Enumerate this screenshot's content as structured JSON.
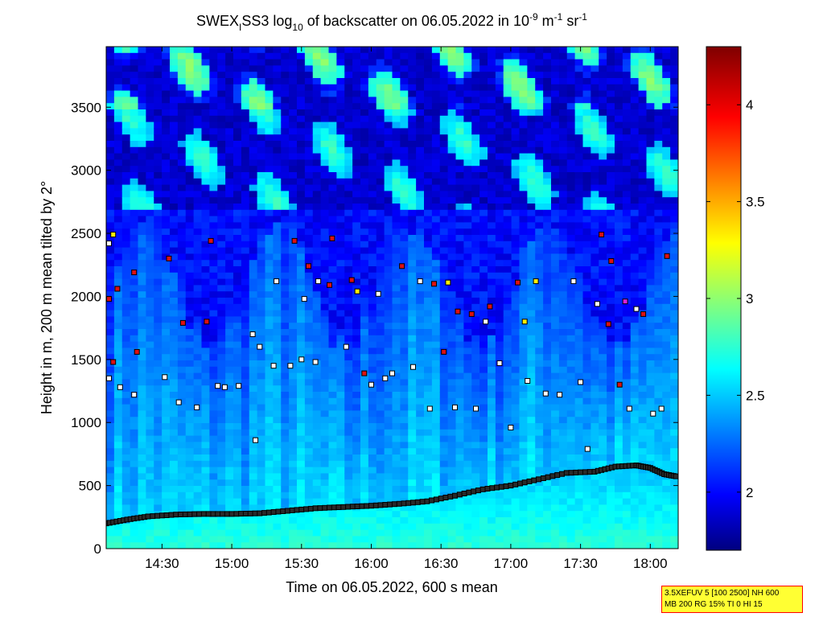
{
  "chart_data": {
    "type": "heatmap",
    "title_parts": [
      "SWEX",
      "I",
      "SS3 log",
      "10",
      " of backscatter on 06.05.2022 in 10",
      "-9",
      " m",
      "-1",
      " sr",
      "-1"
    ],
    "xlabel": "Time on 06.05.2022, 600 s mean",
    "ylabel": "Height in m, 200 m mean tilted by 2°",
    "x_range_hours": [
      14.1,
      18.2
    ],
    "x_ticks": [
      {
        "value": 14.5,
        "label": "14:30"
      },
      {
        "value": 15.0,
        "label": "15:00"
      },
      {
        "value": 15.5,
        "label": "15:30"
      },
      {
        "value": 16.0,
        "label": "16:00"
      },
      {
        "value": 16.5,
        "label": "16:30"
      },
      {
        "value": 17.0,
        "label": "17:00"
      },
      {
        "value": 17.5,
        "label": "17:30"
      },
      {
        "value": 18.0,
        "label": "18:00"
      }
    ],
    "ylim": [
      0,
      3980
    ],
    "y_ticks": [
      0,
      500,
      1000,
      1500,
      2000,
      2500,
      3000,
      3500
    ],
    "colorbar": {
      "range": [
        1.7,
        4.3
      ],
      "ticks": [
        2,
        2.5,
        3,
        3.5,
        4
      ],
      "colormap": "jet"
    },
    "backscatter_profile": {
      "description_levels": "log10 backscatter, dense near ground, decreasing aloft",
      "surface_layer_top_m": [
        200,
        230,
        260,
        290,
        320,
        340,
        370,
        420,
        480,
        540,
        620,
        660,
        600
      ],
      "surface_layer_time_h": [
        14.1,
        14.35,
        14.7,
        15.1,
        15.5,
        15.9,
        16.3,
        16.6,
        16.9,
        17.2,
        17.5,
        17.8,
        18.2
      ]
    },
    "layer_markers": {
      "boundary_layer_top": {
        "time_h": [
          14.1,
          14.25,
          14.4,
          14.6,
          14.8,
          15.0,
          15.2,
          15.4,
          15.6,
          15.8,
          16.0,
          16.2,
          16.4,
          16.6,
          16.8,
          17.0,
          17.2,
          17.4,
          17.6,
          17.75,
          17.9,
          18.0,
          18.1,
          18.2
        ],
        "height_m": [
          200,
          230,
          255,
          270,
          275,
          275,
          280,
          300,
          320,
          330,
          340,
          355,
          375,
          420,
          470,
          500,
          550,
          600,
          610,
          650,
          660,
          640,
          590,
          570
        ]
      },
      "cloud_base_hits": [
        {
          "t": 14.12,
          "h": 1350,
          "c": "w"
        },
        {
          "t": 14.15,
          "h": 1480,
          "c": "r"
        },
        {
          "t": 14.2,
          "h": 1280,
          "c": "w"
        },
        {
          "t": 14.12,
          "h": 1980,
          "c": "r"
        },
        {
          "t": 14.18,
          "h": 2060,
          "c": "r"
        },
        {
          "t": 14.12,
          "h": 2420,
          "c": "w"
        },
        {
          "t": 14.15,
          "h": 2490,
          "c": "y"
        },
        {
          "t": 14.3,
          "h": 1220,
          "c": "w"
        },
        {
          "t": 14.32,
          "h": 1560,
          "c": "r"
        },
        {
          "t": 14.3,
          "h": 2190,
          "c": "r"
        },
        {
          "t": 14.52,
          "h": 1360,
          "c": "w"
        },
        {
          "t": 14.55,
          "h": 2300,
          "c": "r"
        },
        {
          "t": 14.62,
          "h": 1160,
          "c": "w"
        },
        {
          "t": 14.65,
          "h": 1790,
          "c": "r"
        },
        {
          "t": 14.75,
          "h": 1120,
          "c": "w"
        },
        {
          "t": 14.82,
          "h": 1800,
          "c": "r"
        },
        {
          "t": 14.85,
          "h": 2440,
          "c": "r"
        },
        {
          "t": 14.9,
          "h": 1290,
          "c": "w"
        },
        {
          "t": 14.95,
          "h": 1280,
          "c": "w"
        },
        {
          "t": 15.05,
          "h": 1290,
          "c": "w"
        },
        {
          "t": 15.15,
          "h": 1700,
          "c": "w"
        },
        {
          "t": 15.2,
          "h": 1600,
          "c": "w"
        },
        {
          "t": 15.17,
          "h": 860,
          "c": "w"
        },
        {
          "t": 15.3,
          "h": 1450,
          "c": "w"
        },
        {
          "t": 15.32,
          "h": 2120,
          "c": "w"
        },
        {
          "t": 15.42,
          "h": 1450,
          "c": "w"
        },
        {
          "t": 15.45,
          "h": 2440,
          "c": "r"
        },
        {
          "t": 15.5,
          "h": 1500,
          "c": "w"
        },
        {
          "t": 15.52,
          "h": 1980,
          "c": "w"
        },
        {
          "t": 15.55,
          "h": 2240,
          "c": "r"
        },
        {
          "t": 15.6,
          "h": 1480,
          "c": "w"
        },
        {
          "t": 15.62,
          "h": 2120,
          "c": "w"
        },
        {
          "t": 15.7,
          "h": 2090,
          "c": "r"
        },
        {
          "t": 15.72,
          "h": 2460,
          "c": "r"
        },
        {
          "t": 15.82,
          "h": 1600,
          "c": "w"
        },
        {
          "t": 15.86,
          "h": 2130,
          "c": "r"
        },
        {
          "t": 15.9,
          "h": 2040,
          "c": "y"
        },
        {
          "t": 15.95,
          "h": 1390,
          "c": "r"
        },
        {
          "t": 16.0,
          "h": 1300,
          "c": "w"
        },
        {
          "t": 16.05,
          "h": 2020,
          "c": "w"
        },
        {
          "t": 16.1,
          "h": 1350,
          "c": "w"
        },
        {
          "t": 16.15,
          "h": 1390,
          "c": "w"
        },
        {
          "t": 16.22,
          "h": 2240,
          "c": "r"
        },
        {
          "t": 16.3,
          "h": 1440,
          "c": "w"
        },
        {
          "t": 16.35,
          "h": 2120,
          "c": "w"
        },
        {
          "t": 16.42,
          "h": 1110,
          "c": "w"
        },
        {
          "t": 16.45,
          "h": 2100,
          "c": "r"
        },
        {
          "t": 16.52,
          "h": 1560,
          "c": "r"
        },
        {
          "t": 16.55,
          "h": 2110,
          "c": "y"
        },
        {
          "t": 16.6,
          "h": 1120,
          "c": "w"
        },
        {
          "t": 16.62,
          "h": 1880,
          "c": "r"
        },
        {
          "t": 16.72,
          "h": 1860,
          "c": "r"
        },
        {
          "t": 16.75,
          "h": 1110,
          "c": "w"
        },
        {
          "t": 16.82,
          "h": 1800,
          "c": "w"
        },
        {
          "t": 16.85,
          "h": 1920,
          "c": "r"
        },
        {
          "t": 16.92,
          "h": 1470,
          "c": "w"
        },
        {
          "t": 17.0,
          "h": 960,
          "c": "w"
        },
        {
          "t": 17.05,
          "h": 2110,
          "c": "r"
        },
        {
          "t": 17.1,
          "h": 1800,
          "c": "y"
        },
        {
          "t": 17.12,
          "h": 1330,
          "c": "w"
        },
        {
          "t": 17.18,
          "h": 2120,
          "c": "y"
        },
        {
          "t": 17.25,
          "h": 1230,
          "c": "w"
        },
        {
          "t": 17.35,
          "h": 1220,
          "c": "w"
        },
        {
          "t": 17.45,
          "h": 2120,
          "c": "w"
        },
        {
          "t": 17.5,
          "h": 1320,
          "c": "w"
        },
        {
          "t": 17.55,
          "h": 790,
          "c": "w"
        },
        {
          "t": 17.62,
          "h": 1940,
          "c": "w"
        },
        {
          "t": 17.65,
          "h": 2490,
          "c": "r"
        },
        {
          "t": 17.7,
          "h": 1780,
          "c": "r"
        },
        {
          "t": 17.72,
          "h": 2280,
          "c": "r"
        },
        {
          "t": 17.78,
          "h": 1300,
          "c": "r"
        },
        {
          "t": 17.82,
          "h": 1960,
          "c": "m"
        },
        {
          "t": 17.85,
          "h": 1110,
          "c": "w"
        },
        {
          "t": 17.9,
          "h": 1900,
          "c": "w"
        },
        {
          "t": 17.95,
          "h": 1860,
          "c": "r"
        },
        {
          "t": 18.02,
          "h": 1070,
          "c": "w"
        },
        {
          "t": 18.08,
          "h": 1110,
          "c": "w"
        },
        {
          "t": 18.12,
          "h": 2320,
          "c": "r"
        }
      ]
    },
    "info_box": [
      "3.5XEFUV 5 [100 2500] NH 600",
      "MB 200 RG 15% TI 0 HI 15"
    ]
  }
}
